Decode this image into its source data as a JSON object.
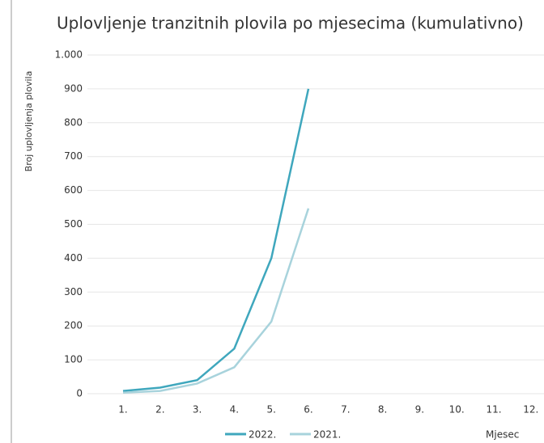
{
  "chart_data": {
    "type": "line",
    "title": "Uplovljenje tranzitnih plovila po mjesecima (kumulativno)",
    "y_label": "Broj uplovljenja plovila",
    "x_label": "Mjesec",
    "categories": [
      "1.",
      "2.",
      "3.",
      "4.",
      "5.",
      "6.",
      "7.",
      "8.",
      "9.",
      "10.",
      "11.",
      "12."
    ],
    "series": [
      {
        "name": "2022.",
        "color": "#3fa7bd",
        "values": [
          8,
          18,
          40,
          133,
          400,
          900,
          null,
          null,
          null,
          null,
          null,
          null
        ]
      },
      {
        "name": "2021.",
        "color": "#a8d3dc",
        "values": [
          3,
          8,
          30,
          78,
          213,
          547,
          null,
          null,
          null,
          null,
          null,
          null
        ]
      }
    ],
    "ylim": [
      0,
      1000
    ],
    "yticks": [
      0,
      100,
      200,
      300,
      400,
      500,
      600,
      700,
      800,
      900,
      {
        "value": 1000,
        "label": "1.000"
      }
    ],
    "grid": true
  }
}
